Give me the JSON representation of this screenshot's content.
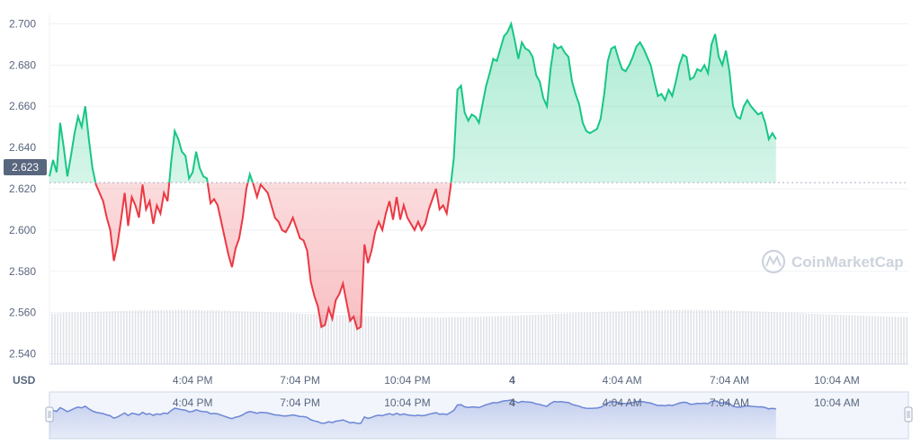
{
  "chart_data": {
    "type": "line",
    "title": "",
    "xlabel": "",
    "ylabel": "USD",
    "reference_value": "2.623",
    "ylim": [
      2.535,
      2.705
    ],
    "y_ticks": [
      "2.540",
      "2.560",
      "2.580",
      "2.600",
      "2.620",
      "2.640",
      "2.660",
      "2.680",
      "2.700"
    ],
    "x_ticks": [
      {
        "label": "4:04 PM",
        "hour": 4
      },
      {
        "label": "7:04 PM",
        "hour": 7
      },
      {
        "label": "10:04 PM",
        "hour": 10
      },
      {
        "label": "4",
        "hour": 12.93
      },
      {
        "label": "4:04 AM",
        "hour": 16
      },
      {
        "label": "7:04 AM",
        "hour": 19
      },
      {
        "label": "10:04 AM",
        "hour": 22
      }
    ],
    "x_range_hours": [
      0,
      24
    ],
    "colors": {
      "up": "#16c784",
      "down": "#ea3943",
      "navigator": "#6d87d6",
      "grid": "#eff2f5",
      "volume": "#dfe2e8"
    },
    "watermark": "CoinMarketCap",
    "series": [
      {
        "values": [
          [
            0.0,
            2.626
          ],
          [
            0.1,
            2.634
          ],
          [
            0.2,
            2.628
          ],
          [
            0.3,
            2.652
          ],
          [
            0.4,
            2.64
          ],
          [
            0.5,
            2.626
          ],
          [
            0.6,
            2.636
          ],
          [
            0.7,
            2.647
          ],
          [
            0.8,
            2.655
          ],
          [
            0.9,
            2.65
          ],
          [
            1.0,
            2.66
          ],
          [
            1.1,
            2.644
          ],
          [
            1.2,
            2.63
          ],
          [
            1.3,
            2.622
          ],
          [
            1.4,
            2.618
          ],
          [
            1.5,
            2.614
          ],
          [
            1.6,
            2.606
          ],
          [
            1.7,
            2.6
          ],
          [
            1.8,
            2.585
          ],
          [
            1.9,
            2.593
          ],
          [
            2.0,
            2.605
          ],
          [
            2.1,
            2.618
          ],
          [
            2.2,
            2.602
          ],
          [
            2.3,
            2.616
          ],
          [
            2.4,
            2.612
          ],
          [
            2.5,
            2.606
          ],
          [
            2.6,
            2.622
          ],
          [
            2.7,
            2.61
          ],
          [
            2.8,
            2.614
          ],
          [
            2.9,
            2.603
          ],
          [
            3.0,
            2.612
          ],
          [
            3.1,
            2.608
          ],
          [
            3.2,
            2.618
          ],
          [
            3.3,
            2.614
          ],
          [
            3.4,
            2.633
          ],
          [
            3.5,
            2.648
          ],
          [
            3.6,
            2.644
          ],
          [
            3.7,
            2.638
          ],
          [
            3.8,
            2.636
          ],
          [
            3.9,
            2.625
          ],
          [
            4.0,
            2.628
          ],
          [
            4.1,
            2.638
          ],
          [
            4.2,
            2.63
          ],
          [
            4.3,
            2.626
          ],
          [
            4.4,
            2.625
          ],
          [
            4.5,
            2.613
          ],
          [
            4.6,
            2.615
          ],
          [
            4.7,
            2.612
          ],
          [
            4.8,
            2.604
          ],
          [
            4.9,
            2.596
          ],
          [
            5.0,
            2.588
          ],
          [
            5.1,
            2.582
          ],
          [
            5.2,
            2.591
          ],
          [
            5.3,
            2.596
          ],
          [
            5.4,
            2.606
          ],
          [
            5.5,
            2.62
          ],
          [
            5.6,
            2.627
          ],
          [
            5.7,
            2.622
          ],
          [
            5.8,
            2.616
          ],
          [
            5.9,
            2.622
          ],
          [
            6.0,
            2.62
          ],
          [
            6.1,
            2.618
          ],
          [
            6.2,
            2.612
          ],
          [
            6.3,
            2.606
          ],
          [
            6.4,
            2.604
          ],
          [
            6.5,
            2.6
          ],
          [
            6.6,
            2.599
          ],
          [
            6.7,
            2.602
          ],
          [
            6.8,
            2.606
          ],
          [
            6.9,
            2.601
          ],
          [
            7.0,
            2.596
          ],
          [
            7.1,
            2.595
          ],
          [
            7.2,
            2.59
          ],
          [
            7.3,
            2.575
          ],
          [
            7.4,
            2.568
          ],
          [
            7.5,
            2.563
          ],
          [
            7.6,
            2.553
          ],
          [
            7.7,
            2.554
          ],
          [
            7.8,
            2.562
          ],
          [
            7.9,
            2.557
          ],
          [
            8.0,
            2.566
          ],
          [
            8.1,
            2.569
          ],
          [
            8.2,
            2.574
          ],
          [
            8.3,
            2.565
          ],
          [
            8.4,
            2.556
          ],
          [
            8.5,
            2.558
          ],
          [
            8.6,
            2.552
          ],
          [
            8.7,
            2.553
          ],
          [
            8.8,
            2.593
          ],
          [
            8.9,
            2.584
          ],
          [
            9.0,
            2.59
          ],
          [
            9.1,
            2.599
          ],
          [
            9.2,
            2.604
          ],
          [
            9.3,
            2.6
          ],
          [
            9.4,
            2.608
          ],
          [
            9.5,
            2.614
          ],
          [
            9.6,
            2.605
          ],
          [
            9.7,
            2.616
          ],
          [
            9.8,
            2.605
          ],
          [
            9.9,
            2.612
          ],
          [
            10.0,
            2.606
          ],
          [
            10.1,
            2.603
          ],
          [
            10.2,
            2.6
          ],
          [
            10.3,
            2.604
          ],
          [
            10.4,
            2.6
          ],
          [
            10.5,
            2.603
          ],
          [
            10.6,
            2.61
          ],
          [
            10.7,
            2.615
          ],
          [
            10.8,
            2.62
          ],
          [
            10.9,
            2.61
          ],
          [
            11.0,
            2.612
          ],
          [
            11.1,
            2.608
          ],
          [
            11.2,
            2.62
          ],
          [
            11.3,
            2.635
          ],
          [
            11.4,
            2.668
          ],
          [
            11.5,
            2.67
          ],
          [
            11.6,
            2.657
          ],
          [
            11.7,
            2.653
          ],
          [
            11.8,
            2.656
          ],
          [
            11.9,
            2.655
          ],
          [
            12.0,
            2.652
          ],
          [
            12.1,
            2.661
          ],
          [
            12.2,
            2.67
          ],
          [
            12.3,
            2.676
          ],
          [
            12.4,
            2.683
          ],
          [
            12.5,
            2.682
          ],
          [
            12.6,
            2.688
          ],
          [
            12.7,
            2.694
          ],
          [
            12.8,
            2.696
          ],
          [
            12.9,
            2.7
          ],
          [
            13.0,
            2.692
          ],
          [
            13.1,
            2.683
          ],
          [
            13.2,
            2.691
          ],
          [
            13.3,
            2.688
          ],
          [
            13.4,
            2.687
          ],
          [
            13.5,
            2.684
          ],
          [
            13.6,
            2.675
          ],
          [
            13.7,
            2.672
          ],
          [
            13.8,
            2.664
          ],
          [
            13.9,
            2.66
          ],
          [
            14.0,
            2.678
          ],
          [
            14.1,
            2.69
          ],
          [
            14.2,
            2.688
          ],
          [
            14.3,
            2.689
          ],
          [
            14.4,
            2.686
          ],
          [
            14.5,
            2.684
          ],
          [
            14.6,
            2.672
          ],
          [
            14.7,
            2.666
          ],
          [
            14.8,
            2.661
          ],
          [
            14.9,
            2.652
          ],
          [
            15.0,
            2.648
          ],
          [
            15.1,
            2.647
          ],
          [
            15.2,
            2.648
          ],
          [
            15.3,
            2.649
          ],
          [
            15.4,
            2.654
          ],
          [
            15.5,
            2.666
          ],
          [
            15.6,
            2.682
          ],
          [
            15.7,
            2.688
          ],
          [
            15.8,
            2.689
          ],
          [
            15.9,
            2.683
          ],
          [
            16.0,
            2.678
          ],
          [
            16.1,
            2.677
          ],
          [
            16.2,
            2.68
          ],
          [
            16.3,
            2.684
          ],
          [
            16.4,
            2.689
          ],
          [
            16.5,
            2.691
          ],
          [
            16.6,
            2.688
          ],
          [
            16.7,
            2.684
          ],
          [
            16.8,
            2.68
          ],
          [
            16.9,
            2.672
          ],
          [
            17.0,
            2.665
          ],
          [
            17.1,
            2.666
          ],
          [
            17.2,
            2.663
          ],
          [
            17.3,
            2.668
          ],
          [
            17.4,
            2.665
          ],
          [
            17.5,
            2.672
          ],
          [
            17.6,
            2.68
          ],
          [
            17.7,
            2.685
          ],
          [
            17.8,
            2.684
          ],
          [
            17.9,
            2.673
          ],
          [
            18.0,
            2.674
          ],
          [
            18.1,
            2.678
          ],
          [
            18.2,
            2.677
          ],
          [
            18.3,
            2.68
          ],
          [
            18.4,
            2.676
          ],
          [
            18.5,
            2.69
          ],
          [
            18.6,
            2.695
          ],
          [
            18.7,
            2.684
          ],
          [
            18.8,
            2.68
          ],
          [
            18.9,
            2.687
          ],
          [
            19.0,
            2.677
          ],
          [
            19.1,
            2.66
          ],
          [
            19.2,
            2.655
          ],
          [
            19.3,
            2.654
          ],
          [
            19.4,
            2.66
          ],
          [
            19.5,
            2.663
          ],
          [
            19.6,
            2.66
          ],
          [
            19.7,
            2.658
          ],
          [
            19.8,
            2.656
          ],
          [
            19.9,
            2.657
          ],
          [
            20.0,
            2.652
          ],
          [
            20.1,
            2.644
          ],
          [
            20.2,
            2.647
          ],
          [
            20.3,
            2.644
          ]
        ]
      }
    ],
    "legend": "none",
    "grid": true
  }
}
